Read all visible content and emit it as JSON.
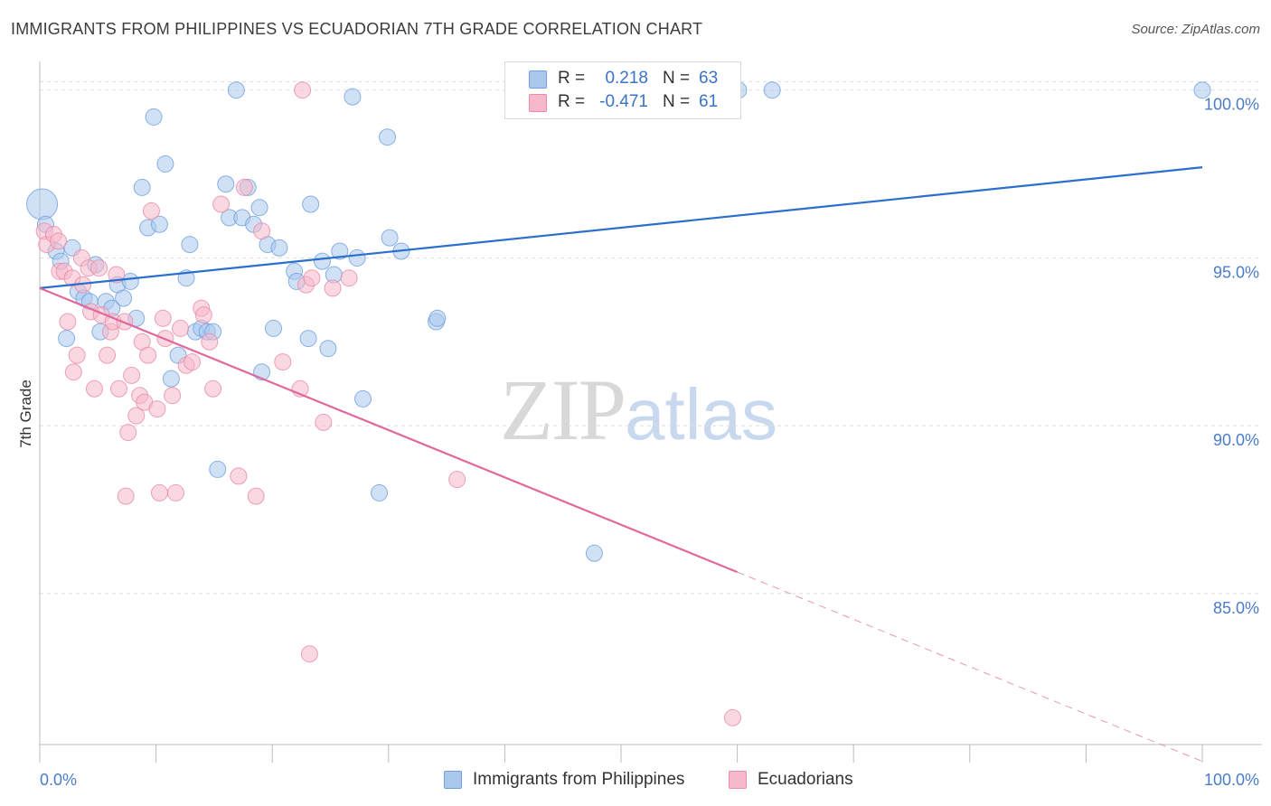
{
  "title": "IMMIGRANTS FROM PHILIPPINES VS ECUADORIAN 7TH GRADE CORRELATION CHART",
  "source": "Source: ZipAtlas.com",
  "watermark": {
    "zip": "ZIP",
    "atlas": "atlas"
  },
  "legend": {
    "r_label": "R =",
    "n_label": "N =",
    "rows": [
      {
        "r": "0.218",
        "n": "63",
        "color": "#aac8ee"
      },
      {
        "r": "-0.471",
        "n": "61",
        "color": "#f6b8cb"
      }
    ]
  },
  "series_labels": [
    "Immigrants from Philippines",
    "Ecuadorians"
  ],
  "colors": {
    "blue_fill": "#aac8ee",
    "blue_stroke": "#6f9fdc",
    "blue_line": "#2b6fcc",
    "pink_fill": "#f6b8cb",
    "pink_stroke": "#e98aa8",
    "pink_line": "#e0689a",
    "tick": "#4a7cc9",
    "grid": "#dddddd"
  },
  "chart_data": {
    "type": "scatter",
    "title": "IMMIGRANTS FROM PHILIPPINES VS ECUADORIAN 7TH GRADE CORRELATION CHART",
    "xlabel": "",
    "ylabel": "7th Grade",
    "xlim": [
      0,
      100
    ],
    "ylim": [
      80.5,
      100.8
    ],
    "x_tick_labels": [
      "0.0%",
      "100.0%"
    ],
    "y_ticks": [
      85,
      90,
      95,
      100
    ],
    "y_tick_labels": [
      "85.0%",
      "90.0%",
      "95.0%",
      "100.0%"
    ],
    "grid": true,
    "legend_position": "top-center",
    "series": [
      {
        "name": "Immigrants from Philippines",
        "r": 0.218,
        "n": 63,
        "trend": {
          "x0": 0,
          "y0": 94.1,
          "x1": 100,
          "y1": 97.7,
          "dashed_from": null
        },
        "points": [
          [
            0.2,
            96.6,
            34
          ],
          [
            0.5,
            96.0,
            18
          ],
          [
            1.4,
            95.2,
            18
          ],
          [
            1.8,
            94.9,
            18
          ],
          [
            2.3,
            92.6,
            18
          ],
          [
            2.8,
            95.3,
            18
          ],
          [
            3.3,
            94.0,
            18
          ],
          [
            3.8,
            93.8,
            18
          ],
          [
            4.3,
            93.7,
            18
          ],
          [
            4.8,
            94.8,
            18
          ],
          [
            5.2,
            92.8,
            18
          ],
          [
            5.7,
            93.7,
            18
          ],
          [
            6.2,
            93.5,
            18
          ],
          [
            6.7,
            94.2,
            18
          ],
          [
            7.2,
            93.8,
            18
          ],
          [
            7.8,
            94.3,
            18
          ],
          [
            8.3,
            93.2,
            18
          ],
          [
            8.8,
            97.1,
            18
          ],
          [
            9.3,
            95.9,
            18
          ],
          [
            9.8,
            99.2,
            18
          ],
          [
            10.3,
            96.0,
            18
          ],
          [
            10.8,
            97.8,
            18
          ],
          [
            11.3,
            91.4,
            18
          ],
          [
            11.9,
            92.1,
            18
          ],
          [
            12.6,
            94.4,
            18
          ],
          [
            12.9,
            95.4,
            18
          ],
          [
            13.4,
            92.8,
            18
          ],
          [
            13.9,
            92.9,
            18
          ],
          [
            14.4,
            92.8,
            18
          ],
          [
            14.9,
            92.8,
            18
          ],
          [
            15.3,
            88.7,
            18
          ],
          [
            16.0,
            97.2,
            18
          ],
          [
            16.3,
            96.2,
            18
          ],
          [
            16.9,
            100.0,
            18
          ],
          [
            17.4,
            96.2,
            18
          ],
          [
            17.9,
            97.1,
            18
          ],
          [
            18.4,
            96.0,
            18
          ],
          [
            18.9,
            96.5,
            18
          ],
          [
            19.1,
            91.6,
            18
          ],
          [
            19.6,
            95.4,
            18
          ],
          [
            20.1,
            92.9,
            18
          ],
          [
            20.6,
            95.3,
            18
          ],
          [
            21.9,
            94.6,
            18
          ],
          [
            22.1,
            94.3,
            18
          ],
          [
            23.1,
            92.6,
            18
          ],
          [
            23.3,
            96.6,
            18
          ],
          [
            24.3,
            94.9,
            18
          ],
          [
            24.8,
            92.3,
            18
          ],
          [
            25.3,
            94.5,
            18
          ],
          [
            25.8,
            95.2,
            18
          ],
          [
            26.9,
            99.8,
            18
          ],
          [
            27.3,
            95.0,
            18
          ],
          [
            27.8,
            90.8,
            18
          ],
          [
            29.2,
            88.0,
            18
          ],
          [
            29.9,
            98.6,
            18
          ],
          [
            30.1,
            95.6,
            18
          ],
          [
            31.1,
            95.2,
            18
          ],
          [
            34.1,
            93.1,
            18
          ],
          [
            34.2,
            93.2,
            18
          ],
          [
            47.7,
            86.2,
            18
          ],
          [
            60.1,
            100.0,
            18
          ],
          [
            63.0,
            100.0,
            18
          ],
          [
            100.0,
            100.0,
            18
          ]
        ]
      },
      {
        "name": "Ecuadorians",
        "r": -0.471,
        "n": 61,
        "trend": {
          "x0": 0,
          "y0": 94.1,
          "x1": 100,
          "y1": 80.0,
          "dashed_from": 60
        },
        "points": [
          [
            0.4,
            95.8,
            18
          ],
          [
            0.6,
            95.4,
            18
          ],
          [
            1.2,
            95.7,
            18
          ],
          [
            1.6,
            95.5,
            18
          ],
          [
            1.7,
            94.6,
            18
          ],
          [
            2.1,
            94.6,
            18
          ],
          [
            2.4,
            93.1,
            18
          ],
          [
            2.8,
            94.4,
            18
          ],
          [
            2.9,
            91.6,
            18
          ],
          [
            3.2,
            92.1,
            18
          ],
          [
            3.6,
            95.0,
            18
          ],
          [
            3.7,
            94.2,
            18
          ],
          [
            4.2,
            94.7,
            18
          ],
          [
            4.4,
            93.4,
            18
          ],
          [
            4.7,
            91.1,
            18
          ],
          [
            5.1,
            94.7,
            18
          ],
          [
            5.3,
            93.3,
            18
          ],
          [
            5.8,
            92.1,
            18
          ],
          [
            6.1,
            92.8,
            18
          ],
          [
            6.3,
            93.1,
            18
          ],
          [
            6.6,
            94.5,
            18
          ],
          [
            6.8,
            91.1,
            18
          ],
          [
            7.3,
            93.1,
            18
          ],
          [
            7.4,
            87.9,
            18
          ],
          [
            7.6,
            89.8,
            18
          ],
          [
            7.9,
            91.5,
            18
          ],
          [
            8.3,
            90.3,
            18
          ],
          [
            8.6,
            90.9,
            18
          ],
          [
            8.8,
            92.5,
            18
          ],
          [
            9.0,
            90.7,
            18
          ],
          [
            9.3,
            92.1,
            18
          ],
          [
            9.6,
            96.4,
            18
          ],
          [
            10.1,
            90.5,
            18
          ],
          [
            10.3,
            88.0,
            18
          ],
          [
            10.6,
            93.2,
            18
          ],
          [
            10.8,
            92.6,
            18
          ],
          [
            11.4,
            90.9,
            18
          ],
          [
            11.7,
            88.0,
            18
          ],
          [
            12.1,
            92.9,
            18
          ],
          [
            12.6,
            91.8,
            18
          ],
          [
            13.1,
            91.9,
            18
          ],
          [
            13.9,
            93.5,
            18
          ],
          [
            14.1,
            93.3,
            18
          ],
          [
            14.6,
            92.5,
            18
          ],
          [
            14.9,
            91.1,
            18
          ],
          [
            15.6,
            96.6,
            18
          ],
          [
            17.1,
            88.5,
            18
          ],
          [
            17.6,
            97.1,
            18
          ],
          [
            18.6,
            87.9,
            18
          ],
          [
            19.1,
            95.8,
            18
          ],
          [
            20.9,
            91.9,
            18
          ],
          [
            22.4,
            91.1,
            18
          ],
          [
            22.9,
            94.2,
            18
          ],
          [
            23.2,
            83.2,
            18
          ],
          [
            22.6,
            100.0,
            18
          ],
          [
            24.4,
            90.1,
            18
          ],
          [
            25.2,
            94.1,
            18
          ],
          [
            26.6,
            94.4,
            18
          ],
          [
            35.9,
            88.4,
            18
          ],
          [
            59.6,
            81.3,
            18
          ],
          [
            23.4,
            94.4,
            18
          ]
        ]
      }
    ]
  }
}
